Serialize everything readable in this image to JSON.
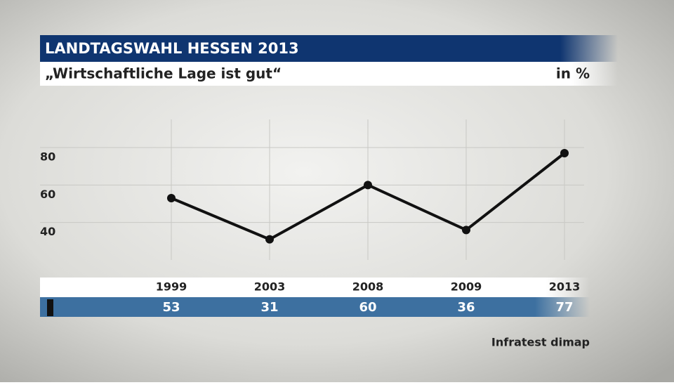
{
  "chart_data": {
    "type": "line",
    "title": "LANDTAGSWAHL HESSEN 2013",
    "subtitle": "„Wirtschaftliche Lage ist gut“",
    "unit_label": "in %",
    "source": "Infratest dimap",
    "categories": [
      "1999",
      "2003",
      "2008",
      "2009",
      "2013"
    ],
    "values": [
      53,
      31,
      60,
      36,
      77
    ],
    "color": "#111111",
    "ylim": [
      20,
      95
    ],
    "yticks": [
      40,
      60,
      80
    ],
    "grid": true
  }
}
